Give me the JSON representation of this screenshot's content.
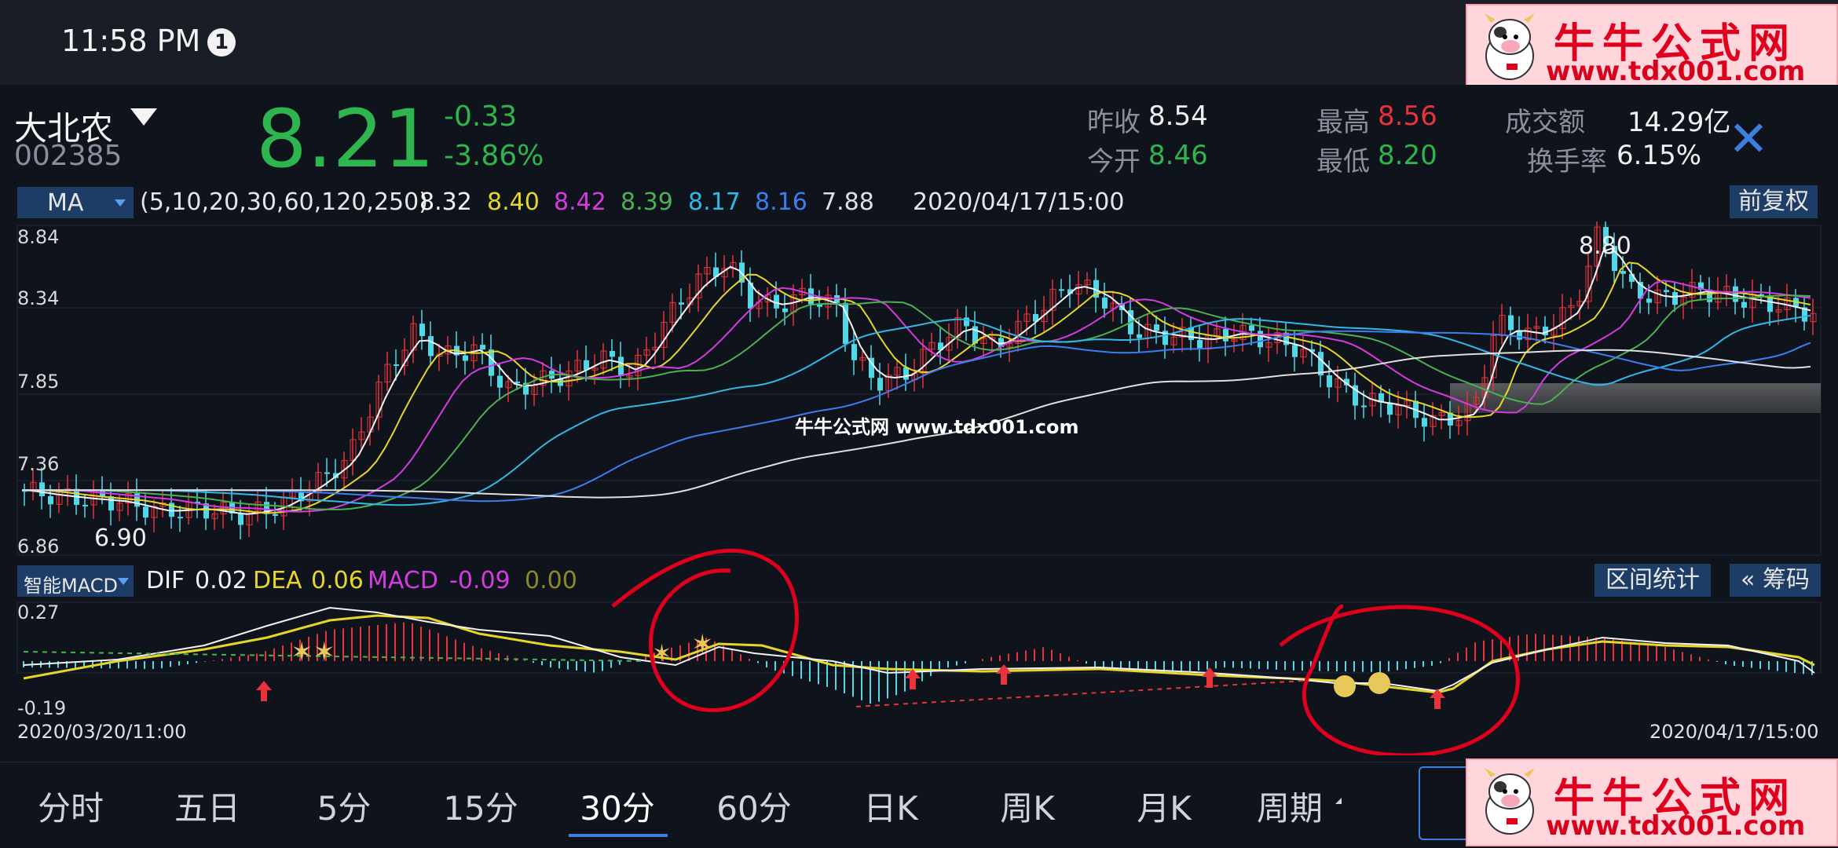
{
  "status_bar": {
    "time": "11:58 PM",
    "notification_badge": "1"
  },
  "watermark": {
    "title": "牛牛公式网",
    "url": "www.tdx001.com",
    "center_text": "牛牛公式网 www.tdx001.com"
  },
  "stock": {
    "name": "大北农",
    "code": "002385",
    "price": "8.21",
    "change": "-0.33",
    "change_pct": "-3.86%",
    "prev_close_label": "昨收",
    "prev_close": "8.54",
    "open_label": "今开",
    "open": "8.46",
    "high_label": "最高",
    "high": "8.56",
    "low_label": "最低",
    "low": "8.20",
    "volume_label": "成交额",
    "volume": "14.29亿",
    "turnover_label": "换手率",
    "turnover": "6.15%"
  },
  "ma_bar": {
    "indicator": "MA",
    "params": "(5,10,20,30,60,120,250)",
    "values": [
      "8.32",
      "8.40",
      "8.42",
      "8.39",
      "8.17",
      "8.16",
      "7.88"
    ],
    "datetime": "2020/04/17/15:00",
    "adjust_button": "前复权"
  },
  "price_axis": {
    "ticks": [
      "8.84",
      "8.34",
      "7.85",
      "7.36",
      "6.86"
    ],
    "low_label": "6.90",
    "high_label": "8.80"
  },
  "macd_bar": {
    "indicator": "智能MACD",
    "dif_label": "DIF",
    "dif": "0.02",
    "dea_label": "DEA",
    "dea": "0.06",
    "macd_label": "MACD",
    "macd": "-0.09",
    "extra": "0.00",
    "range_button": "区间统计",
    "chip_button": "« 筹码"
  },
  "macd_axis": {
    "top": "0.27",
    "bottom": "-0.19"
  },
  "date_range": {
    "start": "2020/03/20/11:00",
    "end": "2020/04/17/15:00"
  },
  "tabs": [
    "分时",
    "五日",
    "5分",
    "15分",
    "30分",
    "60分",
    "日K",
    "周K",
    "月K",
    "周期"
  ],
  "active_tab": "30分",
  "colors": {
    "up": "#e8333a",
    "down": "#4fd8e8",
    "ma5": "#f5f5f5",
    "ma10": "#e6d629",
    "ma20": "#d53be0",
    "ma30": "#4caf50",
    "ma60": "#32b8e6",
    "ma120": "#3f7cf0",
    "ma250": "#e0e0e0",
    "accent": "#3d7fe0",
    "price_down": "#2fb54d"
  }
}
